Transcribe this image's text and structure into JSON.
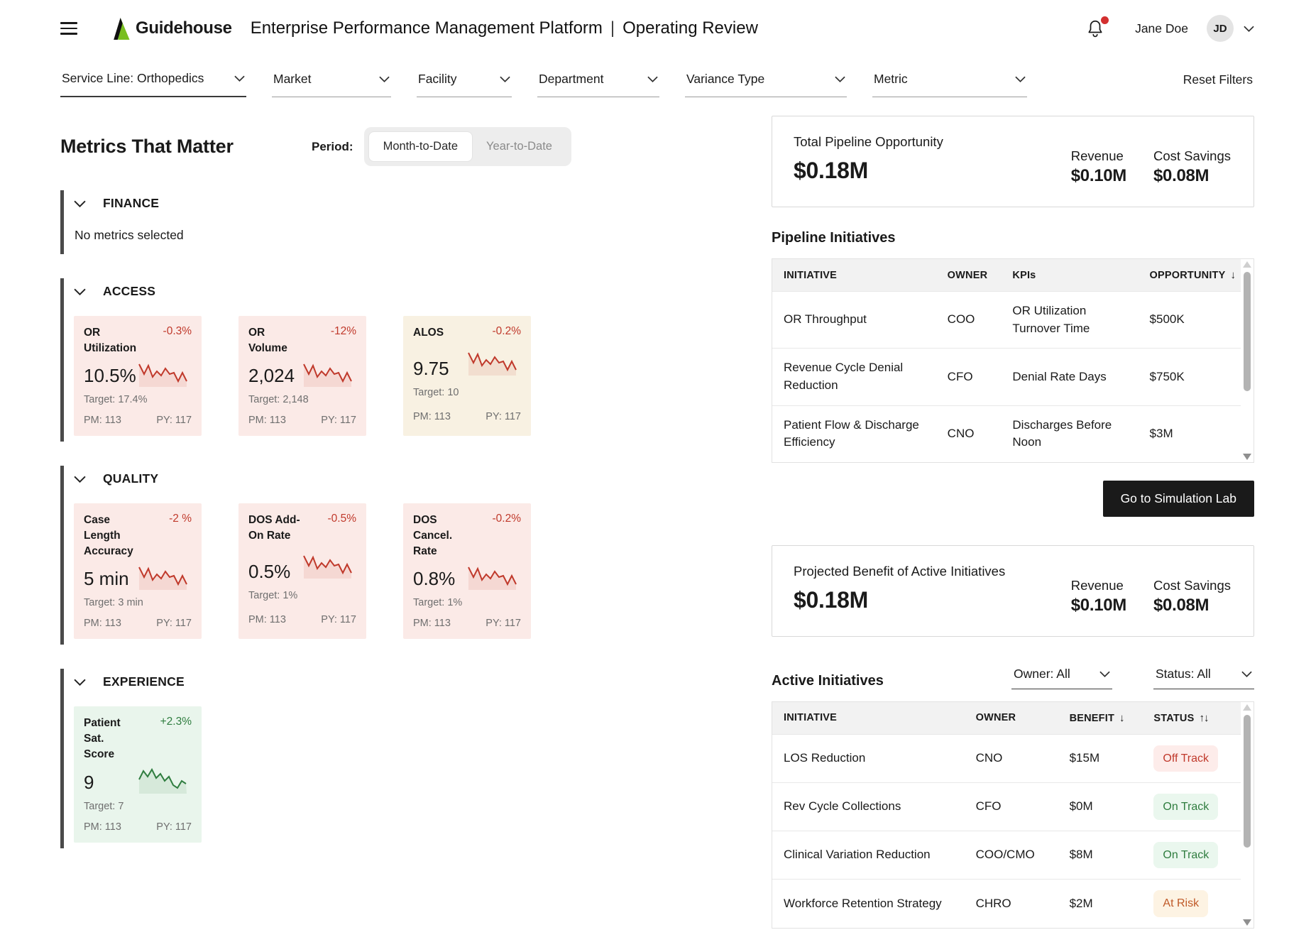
{
  "header": {
    "brand": "Guidehouse",
    "title": "Enterprise Performance Management Platform",
    "separator": "|",
    "subtitle": "Operating Review",
    "user_name": "Jane Doe",
    "avatar_initials": "JD"
  },
  "filters": {
    "items": [
      {
        "label": "Service Line: Orthopedics",
        "active": true
      },
      {
        "label": "Market",
        "active": false
      },
      {
        "label": "Facility",
        "active": false
      },
      {
        "label": "Department",
        "active": false
      },
      {
        "label": "Variance Type",
        "active": false
      },
      {
        "label": "Metric",
        "active": false
      }
    ],
    "reset_label": "Reset Filters"
  },
  "metrics_panel": {
    "title": "Metrics That Matter",
    "period_label": "Period:",
    "period_options": [
      "Month-to-Date",
      "Year-to-Date"
    ],
    "selected_period": "Month-to-Date",
    "sections": [
      {
        "name": "FINANCE",
        "empty_text": "No metrics selected",
        "cards": []
      },
      {
        "name": "ACCESS",
        "cards": [
          {
            "name": "OR Utilization",
            "delta": "-0.3%",
            "value": "10.5%",
            "target": "Target: 17.4%",
            "pm": "PM: 113",
            "py": "PY: 117",
            "tone": "negative",
            "bg": "pink"
          },
          {
            "name": "OR Volume",
            "delta": "-12%",
            "value": "2,024",
            "target": "Target: 2,148",
            "pm": "PM: 113",
            "py": "PY: 117",
            "tone": "negative",
            "bg": "pink"
          },
          {
            "name": "ALOS",
            "delta": "-0.2%",
            "value": "9.75",
            "target": "Target: 10",
            "pm": "PM: 113",
            "py": "PY: 117",
            "tone": "negative",
            "bg": "cream"
          }
        ]
      },
      {
        "name": "QUALITY",
        "cards": [
          {
            "name": "Case Length Accuracy",
            "delta": "-2 %",
            "value": "5 min",
            "target": "Target: 3 min",
            "pm": "PM: 113",
            "py": "PY: 117",
            "tone": "negative",
            "bg": "pink"
          },
          {
            "name": "DOS Add-On Rate",
            "delta": "-0.5%",
            "value": "0.5%",
            "target": "Target: 1%",
            "pm": "PM: 113",
            "py": "PY: 117",
            "tone": "negative",
            "bg": "pink"
          },
          {
            "name": "DOS Cancel. Rate",
            "delta": "-0.2%",
            "value": "0.8%",
            "target": "Target: 1%",
            "pm": "PM: 113",
            "py": "PY: 117",
            "tone": "negative",
            "bg": "pink"
          }
        ]
      },
      {
        "name": "EXPERIENCE",
        "cards": [
          {
            "name": "Patient Sat. Score",
            "delta": "+2.3%",
            "value": "9",
            "target": "Target: 7",
            "pm": "PM: 113",
            "py": "PY: 117",
            "tone": "positive",
            "bg": "green"
          }
        ]
      }
    ]
  },
  "pipeline": {
    "summary": {
      "title": "Total Pipeline Opportunity",
      "total": "$0.18M",
      "revenue_label": "Revenue",
      "revenue": "$0.10M",
      "cost_label": "Cost Savings",
      "cost": "$0.08M"
    },
    "table_title": "Pipeline Initiatives",
    "columns": [
      {
        "label": "INITIATIVE",
        "sort": ""
      },
      {
        "label": "OWNER",
        "sort": ""
      },
      {
        "label": "KPIs",
        "sort": ""
      },
      {
        "label": "OPPORTUNITY",
        "sort": "↓"
      }
    ],
    "rows": [
      {
        "initiative": "OR Throughput",
        "owner": "COO",
        "kpis": "OR Utilization Turnover Time",
        "opportunity": "$500K"
      },
      {
        "initiative": "Revenue Cycle Denial Reduction",
        "owner": "CFO",
        "kpis": "Denial Rate Days",
        "opportunity": "$750K"
      },
      {
        "initiative": "Patient Flow & Discharge Efficiency",
        "owner": "CNO",
        "kpis": "Discharges Before Noon",
        "opportunity": "$3M"
      }
    ],
    "cta_label": "Go to Simulation Lab"
  },
  "active": {
    "summary": {
      "title": "Projected Benefit of Active Initiatives",
      "total": "$0.18M",
      "revenue_label": "Revenue",
      "revenue": "$0.10M",
      "cost_label": "Cost Savings",
      "cost": "$0.08M"
    },
    "table_title": "Active Initiatives",
    "owner_filter": "Owner: All",
    "status_filter": "Status: All",
    "columns": [
      {
        "label": "INITIATIVE",
        "sort": ""
      },
      {
        "label": "OWNER",
        "sort": ""
      },
      {
        "label": "BENEFIT",
        "sort": "↓"
      },
      {
        "label": "STATUS",
        "sort": "↑↓"
      }
    ],
    "rows": [
      {
        "initiative": "LOS Reduction",
        "owner": "CNO",
        "benefit": "$15M",
        "status": "Off Track",
        "tone": "red"
      },
      {
        "initiative": "Rev Cycle Collections",
        "owner": "CFO",
        "benefit": "$0M",
        "status": "On Track",
        "tone": "green"
      },
      {
        "initiative": "Clinical Variation Reduction",
        "owner": "COO/CMO",
        "benefit": "$8M",
        "status": "On Track",
        "tone": "green"
      },
      {
        "initiative": "Workforce Retention Strategy",
        "owner": "CHRO",
        "benefit": "$2M",
        "status": "At Risk",
        "tone": "amber"
      }
    ]
  },
  "colors": {
    "brand_green": "#78BE20",
    "negative": "#c0392b",
    "positive": "#2f7d3f",
    "card_pink": "#fbeae7",
    "card_cream": "#f8f1e2",
    "card_green": "#e9f5ec",
    "badge_off_track_bg": "#fdecea",
    "badge_on_track_bg": "#eaf7ee",
    "badge_at_risk_bg": "#fdf3e3",
    "badge_at_risk_text": "#c05a28",
    "cta_bg": "#1a1a1a",
    "notification_dot": "#d32f2f"
  }
}
